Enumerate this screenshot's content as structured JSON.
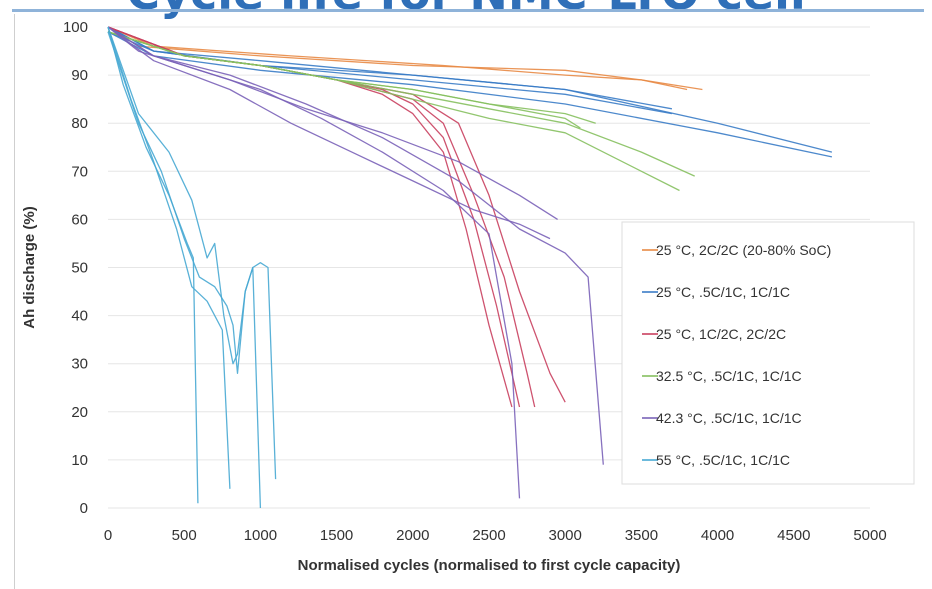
{
  "page": {
    "title": "Cycle life for NMC-LTO cell"
  },
  "colors": {
    "orange": "#e88a45",
    "blue": "#3a7cc7",
    "red": "#c9405f",
    "green": "#86c05f",
    "purple": "#7a62b8",
    "cyan": "#47a9d3"
  },
  "chart_data": {
    "type": "line",
    "title": "",
    "xlabel": "Normalised cycles (normalised to first cycle capacity)",
    "ylabel": "Ah discharge (%)",
    "xlim": [
      0,
      5000
    ],
    "ylim": [
      0,
      100
    ],
    "xticks": [
      "0",
      "500",
      "1000",
      "1500",
      "2000",
      "2500",
      "3000",
      "3500",
      "4000",
      "4500",
      "5000"
    ],
    "yticks": [
      "0",
      "10",
      "20",
      "30",
      "40",
      "50",
      "60",
      "70",
      "80",
      "90",
      "100"
    ],
    "grid": "horizontal",
    "legend_position": "right",
    "legend": [
      {
        "label": "25 °C, 2C/2C (20-80% SoC)",
        "color": "orange"
      },
      {
        "label": "25 °C, .5C/1C, 1C/1C",
        "color": "blue"
      },
      {
        "label": "25 °C, 1C/2C, 2C/2C",
        "color": "red"
      },
      {
        "label": "32.5 °C, .5C/1C, 1C/1C",
        "color": "green"
      },
      {
        "label": "42.3 °C, .5C/1C, 1C/1C",
        "color": "purple"
      },
      {
        "label": "55 °C, .5C/1C, 1C/1C",
        "color": "cyan"
      }
    ],
    "series": [
      {
        "color": "orange",
        "x": [
          0,
          200,
          1000,
          2000,
          3000,
          3500,
          3900
        ],
        "y": [
          100,
          96,
          94,
          92,
          91,
          89,
          87
        ]
      },
      {
        "color": "orange",
        "x": [
          0,
          300,
          1200,
          2200,
          3000,
          3500,
          3800
        ],
        "y": [
          100,
          96,
          94,
          92,
          90,
          89,
          87
        ]
      },
      {
        "color": "blue",
        "x": [
          0,
          300,
          1000,
          2000,
          3000,
          4000,
          4750
        ],
        "y": [
          99,
          95,
          92,
          90,
          87,
          80,
          74
        ]
      },
      {
        "color": "blue",
        "x": [
          0,
          300,
          1000,
          2000,
          3000,
          4000,
          4750
        ],
        "y": [
          99,
          94,
          91,
          88,
          84,
          78,
          73
        ]
      },
      {
        "color": "blue",
        "x": [
          0,
          300,
          1000,
          2000,
          3000,
          3700
        ],
        "y": [
          100,
          95,
          92,
          89,
          86,
          82
        ]
      },
      {
        "color": "blue",
        "x": [
          0,
          300,
          1000,
          2000,
          3000,
          3700
        ],
        "y": [
          100,
          95,
          93,
          90,
          87,
          83
        ]
      },
      {
        "color": "red",
        "x": [
          0,
          500,
          1000,
          1500,
          1800,
          2000,
          2200,
          2400,
          2550,
          2650,
          2700
        ],
        "y": [
          100,
          94,
          92,
          89,
          87,
          84,
          77,
          60,
          42,
          28,
          21
        ]
      },
      {
        "color": "red",
        "x": [
          0,
          500,
          1000,
          1500,
          1800,
          2000,
          2200,
          2350,
          2500,
          2650
        ],
        "y": [
          100,
          94,
          92,
          89,
          86,
          82,
          74,
          58,
          38,
          21
        ]
      },
      {
        "color": "red",
        "x": [
          0,
          500,
          1000,
          1500,
          2000,
          2200,
          2400,
          2600,
          2750,
          2800
        ],
        "y": [
          100,
          94,
          92,
          89,
          85,
          80,
          65,
          48,
          28,
          21
        ]
      },
      {
        "color": "red",
        "x": [
          0,
          500,
          1000,
          1500,
          2000,
          2300,
          2500,
          2700,
          2900,
          3000
        ],
        "y": [
          100,
          94,
          92,
          89,
          86,
          80,
          65,
          45,
          28,
          22
        ]
      },
      {
        "color": "green",
        "x": [
          0,
          500,
          1000,
          1500,
          2000,
          2500,
          3000,
          3500,
          3850
        ],
        "y": [
          99,
          94,
          92,
          89,
          86,
          83,
          80,
          74,
          69
        ]
      },
      {
        "color": "green",
        "x": [
          0,
          500,
          1000,
          1500,
          2000,
          2500,
          3000,
          3500,
          3750
        ],
        "y": [
          99,
          94,
          92,
          89,
          85,
          81,
          78,
          70,
          66
        ]
      },
      {
        "color": "green",
        "x": [
          0,
          500,
          1000,
          1500,
          2000,
          2500,
          3000,
          3200
        ],
        "y": [
          99,
          94,
          92,
          89,
          87,
          84,
          82,
          80
        ]
      },
      {
        "color": "green",
        "x": [
          0,
          500,
          1000,
          1500,
          2000,
          2500,
          3000,
          3100
        ],
        "y": [
          99,
          94,
          92,
          89,
          87,
          84,
          81,
          79
        ]
      },
      {
        "color": "purple",
        "x": [
          0,
          200,
          600,
          1000,
          1400,
          1800,
          2200,
          2500,
          2650,
          2700
        ],
        "y": [
          100,
          95,
          91,
          87,
          81,
          74,
          66,
          57,
          30,
          2
        ]
      },
      {
        "color": "purple",
        "x": [
          0,
          300,
          800,
          1300,
          1800,
          2300,
          2700,
          3000,
          3150,
          3250
        ],
        "y": [
          100,
          94,
          90,
          84,
          77,
          68,
          58,
          53,
          48,
          9
        ]
      },
      {
        "color": "purple",
        "x": [
          0,
          300,
          800,
          1300,
          1800,
          2300,
          2700,
          2950
        ],
        "y": [
          100,
          94,
          89,
          83,
          78,
          72,
          65,
          60
        ]
      },
      {
        "color": "purple",
        "x": [
          0,
          300,
          800,
          1200,
          1600,
          2000,
          2400,
          2700,
          2900
        ],
        "y": [
          100,
          93,
          87,
          80,
          74,
          68,
          62,
          59,
          56
        ]
      },
      {
        "color": "cyan",
        "x": [
          0,
          100,
          250,
          400,
          520,
          560,
          590
        ],
        "y": [
          100,
          88,
          75,
          65,
          55,
          52,
          1
        ]
      },
      {
        "color": "cyan",
        "x": [
          0,
          150,
          300,
          450,
          550,
          650,
          700,
          750,
          800
        ],
        "y": [
          100,
          85,
          72,
          58,
          46,
          43,
          40,
          37,
          4
        ]
      },
      {
        "color": "cyan",
        "x": [
          0,
          200,
          400,
          550,
          650,
          700,
          760,
          790,
          820,
          850,
          900,
          950,
          1000
        ],
        "y": [
          100,
          82,
          74,
          64,
          52,
          55,
          40,
          35,
          30,
          32,
          45,
          50,
          0
        ]
      },
      {
        "color": "cyan",
        "x": [
          0,
          200,
          350,
          500,
          600,
          700,
          780,
          820,
          850,
          900,
          950,
          1000,
          1050,
          1100
        ],
        "y": [
          99,
          80,
          70,
          56,
          48,
          46,
          42,
          38,
          28,
          45,
          50,
          51,
          50,
          6
        ]
      }
    ]
  }
}
